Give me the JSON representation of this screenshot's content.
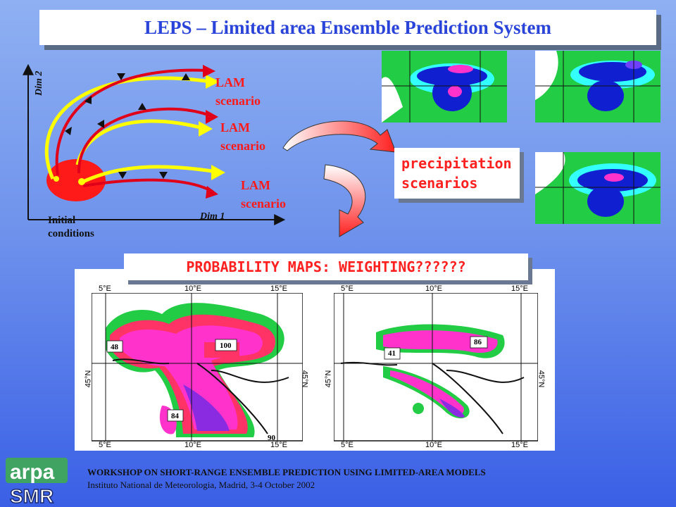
{
  "title": "LEPS – Limited area Ensemble Prediction System",
  "diagram": {
    "dim2_label": "Dim 2",
    "dim1_label": "Dim 1",
    "initial_label_line1": "Initial",
    "initial_label_line2": "conditions",
    "scenarios": [
      {
        "line1": "LAM",
        "line2": "scenario"
      },
      {
        "line1": "LAM",
        "line2": "scenario"
      },
      {
        "line1": "LAM",
        "line2": "scenario"
      }
    ]
  },
  "precip_box": {
    "line1": "precipitation",
    "line2": "scenarios"
  },
  "probability_box": {
    "label": "PROBABILITY MAPS: WEIGHTING??????"
  },
  "maps": {
    "left": {
      "top_ticks": [
        "5°E",
        "10°E",
        "15°E"
      ],
      "bottom_ticks": [
        "5°E",
        "10°E",
        "15°E"
      ],
      "lat_left": "45°N",
      "lat_right": "45°N",
      "values": [
        "48",
        "100",
        "84",
        "90"
      ]
    },
    "right": {
      "top_ticks": [
        "5°E",
        "10°E",
        "15°E"
      ],
      "bottom_ticks": [
        "5°E",
        "10°E",
        "15°E"
      ],
      "lat_left": "45°N",
      "lat_right": "45°N",
      "values": [
        "41",
        "86"
      ]
    }
  },
  "footer": {
    "line1": "WORKSHOP ON SHORT-RANGE ENSEMBLE PREDICTION USING LIMITED-AREA MODELS",
    "line2": "Instituto National de Meteorologia, Madrid, 3-4 October 2002"
  },
  "logo": {
    "top": "arpa",
    "bottom": "SMR"
  },
  "colors": {
    "title": "#2a43d8",
    "scenario_text": "#ff1a1a",
    "red_path": "#e0001a",
    "yellow_path": "#ffff00",
    "green_land": "#22cc44",
    "cyan": "#33ffff",
    "blue": "#1020d0",
    "magenta": "#ff33cc"
  }
}
